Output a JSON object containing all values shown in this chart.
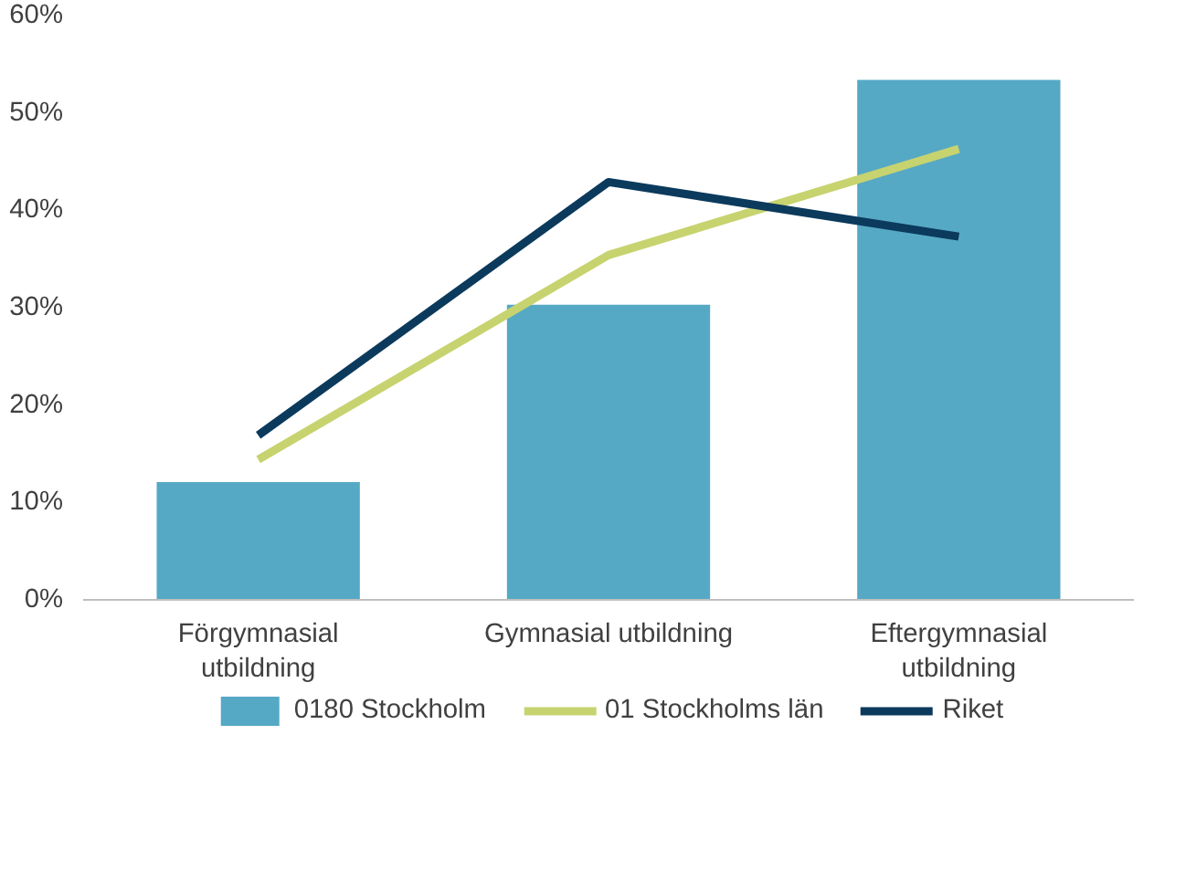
{
  "chart_data": {
    "type": "bar",
    "categories": [
      "Förgymnasial utbildning",
      "Gymnasial utbildning",
      "Eftergymnasial utbildning"
    ],
    "series": [
      {
        "name": "0180 Stockholm",
        "color": "#56a9c5",
        "values": [
          12.1,
          30.3,
          53.4
        ]
      },
      {
        "name": "01 Stockholms län",
        "type": "line",
        "color": "#c7d36f",
        "values": [
          14.4,
          35.4,
          46.3
        ]
      },
      {
        "name": "Riket",
        "type": "line",
        "color": "#0b3a5c",
        "values": [
          16.9,
          42.9,
          37.3
        ]
      }
    ],
    "ylim": [
      0,
      60
    ],
    "yticks": [
      {
        "value": 0,
        "label": "0%"
      },
      {
        "value": 10,
        "label": "10%"
      },
      {
        "value": 20,
        "label": "20%"
      },
      {
        "value": 30,
        "label": "30%"
      },
      {
        "value": 40,
        "label": "40%"
      },
      {
        "value": 50,
        "label": "50%"
      },
      {
        "value": 60,
        "label": "60%"
      }
    ],
    "grid": false,
    "legend": "bottom",
    "marker": "none",
    "line_style": "solid"
  }
}
